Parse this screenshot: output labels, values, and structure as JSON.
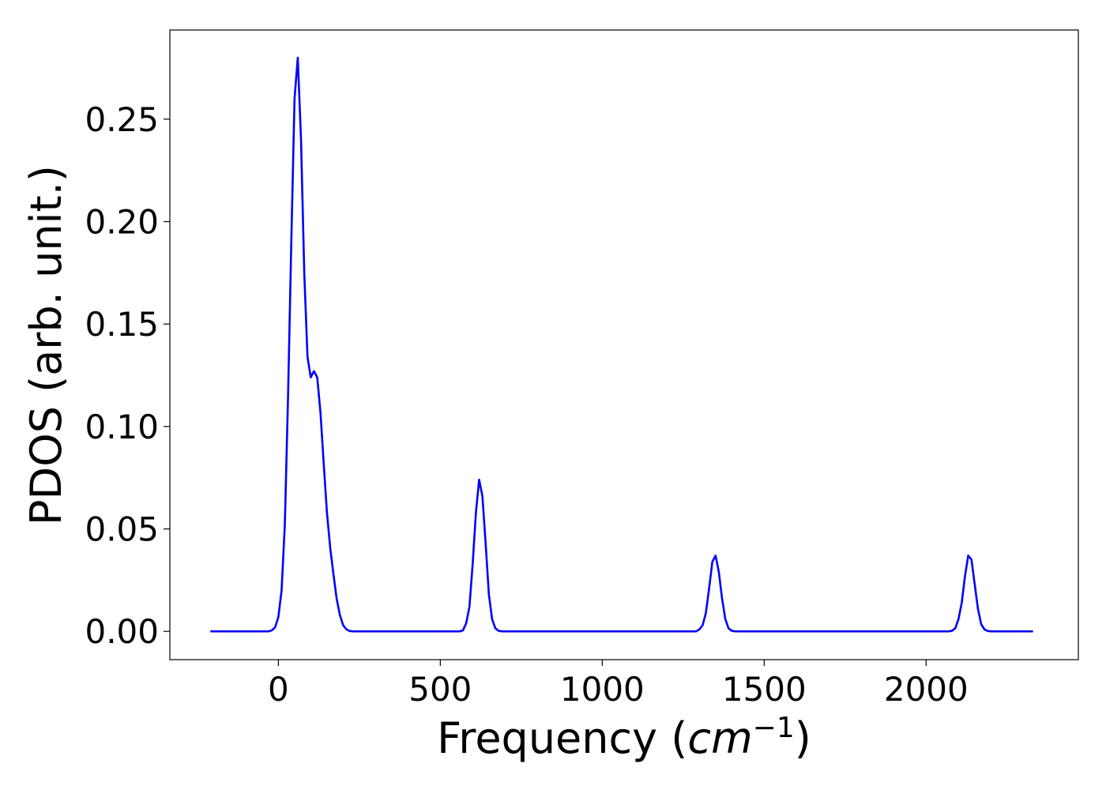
{
  "chart_data": {
    "type": "line",
    "title": "",
    "xlabel": "Frequency (",
    "xlabel_math": "cm",
    "xlabel_sup": "−1",
    "xlabel_close": ")",
    "ylabel": "PDOS (arb. unit.)",
    "xlim": [
      -335,
      2470
    ],
    "ylim": [
      -0.0138,
      0.2935
    ],
    "xticks": [
      0,
      500,
      1000,
      1500,
      2000
    ],
    "xtick_labels": [
      "0",
      "500",
      "1000",
      "1500",
      "2000"
    ],
    "yticks": [
      0.0,
      0.05,
      0.1,
      0.15,
      0.2,
      0.25
    ],
    "ytick_labels": [
      "0.00",
      "0.05",
      "0.10",
      "0.15",
      "0.20",
      "0.25"
    ],
    "grid": false,
    "legend": "none",
    "series": [
      {
        "color": "#0000ff",
        "x": [
          -210,
          -30,
          -20,
          -10,
          0,
          10,
          20,
          30,
          40,
          50,
          60,
          70,
          80,
          90,
          100,
          110,
          120,
          130,
          140,
          150,
          160,
          170,
          180,
          190,
          200,
          210,
          220,
          230,
          240,
          250,
          260,
          270,
          280,
          560,
          570,
          580,
          590,
          600,
          610,
          620,
          630,
          640,
          650,
          660,
          670,
          680,
          690,
          700,
          710,
          1290,
          1300,
          1310,
          1320,
          1330,
          1340,
          1350,
          1360,
          1370,
          1380,
          1390,
          1400,
          1410,
          1420,
          1430,
          2070,
          2080,
          2090,
          2100,
          2110,
          2120,
          2130,
          2140,
          2150,
          2160,
          2170,
          2180,
          2190,
          2200,
          2210,
          2330
        ],
        "y": [
          0.0,
          0.0,
          0.0005,
          0.002,
          0.007,
          0.02,
          0.052,
          0.115,
          0.19,
          0.26,
          0.28,
          0.24,
          0.175,
          0.134,
          0.124,
          0.127,
          0.124,
          0.107,
          0.082,
          0.058,
          0.041,
          0.028,
          0.016,
          0.008,
          0.003,
          0.001,
          0.0002,
          0.0,
          0.0,
          0.0,
          0.0,
          0.0,
          0.0,
          0.0,
          0.0005,
          0.004,
          0.012,
          0.033,
          0.058,
          0.074,
          0.066,
          0.043,
          0.018,
          0.006,
          0.0015,
          0.0003,
          0.0,
          0.0,
          0.0,
          0.0,
          0.001,
          0.003,
          0.009,
          0.021,
          0.034,
          0.037,
          0.029,
          0.016,
          0.006,
          0.0015,
          0.0003,
          0.0,
          0.0,
          0.0,
          0.0,
          0.0003,
          0.0015,
          0.006,
          0.014,
          0.027,
          0.037,
          0.035,
          0.023,
          0.011,
          0.0035,
          0.001,
          0.0002,
          0.0,
          0.0,
          0.0
        ]
      }
    ]
  }
}
